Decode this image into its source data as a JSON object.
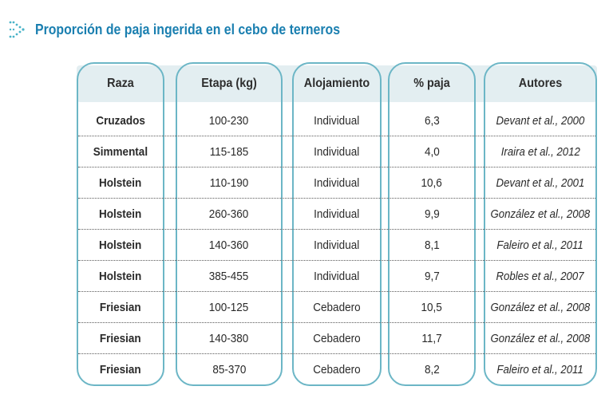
{
  "title": "Proporción de paja ingerida en el cebo de terneros",
  "colors": {
    "title": "#1a7fb0",
    "frame": "#6cb6c6",
    "header_bg": "#e3eef1"
  },
  "table": {
    "headers": [
      "Raza",
      "Etapa (kg)",
      "Alojamiento",
      "% paja",
      "Autores"
    ],
    "rows": [
      [
        "Cruzados",
        "100-230",
        "Individual",
        "6,3",
        "Devant et al., 2000"
      ],
      [
        "Simmental",
        "115-185",
        "Individual",
        "4,0",
        "Iraira et al., 2012"
      ],
      [
        "Holstein",
        "110-190",
        "Individual",
        "10,6",
        "Devant et al., 2001"
      ],
      [
        "Holstein",
        "260-360",
        "Individual",
        "9,9",
        "González et al., 2008"
      ],
      [
        "Holstein",
        "140-360",
        "Individual",
        "8,1",
        "Faleiro et al., 2011"
      ],
      [
        "Holstein",
        "385-455",
        "Individual",
        "9,7",
        "Robles et al., 2007"
      ],
      [
        "Friesian",
        "100-125",
        "Cebadero",
        "10,5",
        "González et al., 2008"
      ],
      [
        "Friesian",
        "140-380",
        "Cebadero",
        "11,7",
        "González et al., 2008"
      ],
      [
        "Friesian",
        "85-370",
        "Cebadero",
        "8,2",
        "Faleiro et al., 2011"
      ]
    ]
  }
}
